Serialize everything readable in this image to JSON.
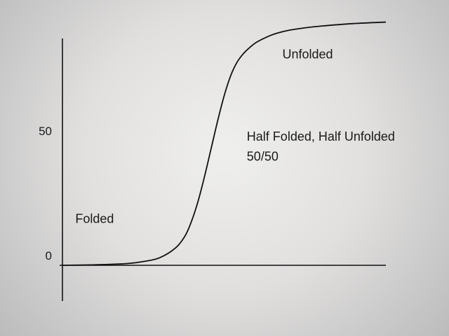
{
  "chart_data": {
    "type": "line",
    "title": "",
    "xlabel": "",
    "ylabel": "",
    "y_ticks": [
      {
        "value": 0,
        "label": "0"
      },
      {
        "value": 50,
        "label": "50"
      }
    ],
    "ylim": [
      -15,
      100
    ],
    "xlim": [
      0,
      1
    ],
    "grid": false,
    "legend": "none",
    "series": [
      {
        "color": "#111111",
        "x": [
          0.0,
          0.1,
          0.2,
          0.25,
          0.3,
          0.35,
          0.38,
          0.4,
          0.42,
          0.44,
          0.46,
          0.48,
          0.5,
          0.52,
          0.54,
          0.56,
          0.58,
          0.6,
          0.63,
          0.66,
          0.7,
          0.75,
          0.8,
          0.9,
          1.0
        ],
        "y": [
          0.0,
          0.2,
          0.7,
          1.5,
          3.0,
          7.0,
          12.0,
          18.0,
          26.0,
          36.0,
          47.0,
          58.0,
          68.0,
          76.0,
          81.5,
          85.0,
          87.5,
          89.5,
          91.5,
          93.0,
          94.3,
          95.3,
          96.0,
          97.0,
          97.6
        ]
      }
    ],
    "annotations": [
      {
        "text": "Unfolded",
        "x": 0.68,
        "y": 83
      },
      {
        "text": "Half Folded, Half Unfolded",
        "x": 0.57,
        "y": 50
      },
      {
        "text": "50/50",
        "x": 0.57,
        "y": 42
      },
      {
        "text": "Folded",
        "x": 0.04,
        "y": 17
      }
    ]
  }
}
